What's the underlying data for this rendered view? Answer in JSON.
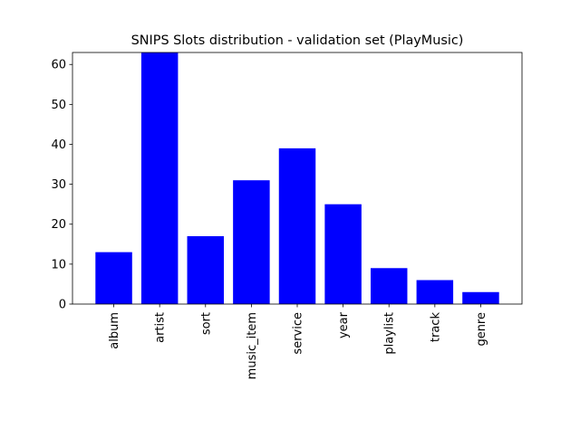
{
  "chart_data": {
    "type": "bar",
    "title": "SNIPS Slots distribution - validation set (PlayMusic)",
    "xlabel": "",
    "ylabel": "",
    "categories": [
      "album",
      "artist",
      "sort",
      "music_item",
      "service",
      "year",
      "playlist",
      "track",
      "genre"
    ],
    "values": [
      13,
      63,
      17,
      31,
      39,
      25,
      9,
      6,
      3
    ],
    "ylim": [
      0,
      63
    ],
    "yticks": [
      0,
      10,
      20,
      30,
      40,
      50,
      60
    ],
    "bar_color": "#0000ff",
    "grid": false,
    "legend": "none",
    "xtick_rotation": "vertical"
  }
}
